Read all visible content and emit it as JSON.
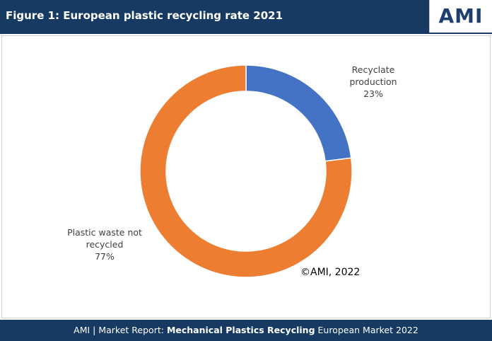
{
  "header": {
    "title": "Figure 1: European plastic recycling rate 2021",
    "logo": "AMI"
  },
  "chart_data": {
    "type": "donut",
    "categories": [
      "Recyclate production",
      "Plastic waste not recycled"
    ],
    "values": [
      23,
      77
    ],
    "value_labels": [
      "23%",
      "77%"
    ],
    "colors": [
      "#4472c4",
      "#ed7d31"
    ],
    "annotation": "©AMI, 2022"
  },
  "footer": {
    "prefix": "AMI | Market Report:",
    "bold": "Mechanical Plastics Recycling",
    "suffix": "European Market 2022"
  }
}
